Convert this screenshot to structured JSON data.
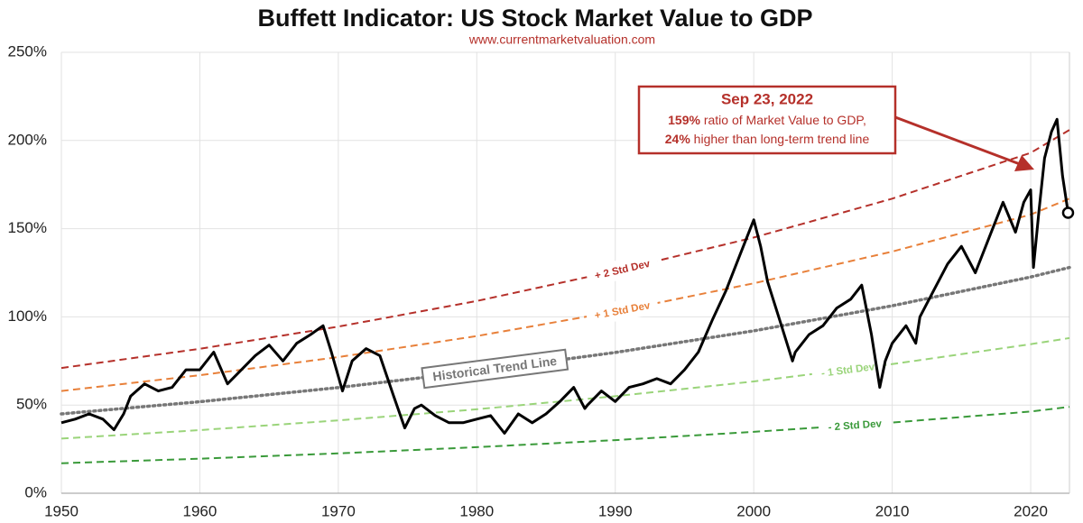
{
  "chart_data": {
    "type": "line",
    "title": "Buffett Indicator: US Stock Market Value to GDP",
    "subtitle": "www.currentmarketvaluation.com",
    "xlim": [
      1950,
      2022.8
    ],
    "xticks": [
      1950,
      1960,
      1970,
      1980,
      1990,
      2000,
      2010,
      2020
    ],
    "ylim": [
      0,
      250
    ],
    "yticks": [
      {
        "value": 0,
        "label": "0%"
      },
      {
        "value": 50,
        "label": "50%"
      },
      {
        "value": 100,
        "label": "100%"
      },
      {
        "value": 150,
        "label": "150%"
      },
      {
        "value": 200,
        "label": "200%"
      },
      {
        "value": 250,
        "label": "250%"
      }
    ],
    "grid": true,
    "series": [
      {
        "name": "+ 2 Std Dev",
        "color": "#b5302a",
        "style": "dashed",
        "x": [
          1950,
          1960,
          1970,
          1980,
          1990,
          2000,
          2010,
          2020,
          2022.8
        ],
        "values": [
          71,
          81.9,
          94.5,
          109,
          126,
          145,
          167,
          193,
          206
        ]
      },
      {
        "name": "+ 1 Std Dev",
        "color": "#e8803a",
        "style": "dashed",
        "x": [
          1950,
          1960,
          1970,
          1980,
          1990,
          2000,
          2010,
          2020,
          2022.8
        ],
        "values": [
          58,
          66.9,
          77.2,
          89.1,
          103,
          119,
          137,
          158,
          167
        ]
      },
      {
        "name": "Historical Trend Line",
        "color": "#777777",
        "style": "dotted",
        "x": [
          1950,
          1960,
          1970,
          1980,
          1990,
          2000,
          2010,
          2020,
          2022.8
        ],
        "values": [
          45,
          51.9,
          59.9,
          69.2,
          79.8,
          92.1,
          106.3,
          122.6,
          128
        ]
      },
      {
        "name": "- 1 Std Dev",
        "color": "#9ad47a",
        "style": "dashed",
        "x": [
          1950,
          1960,
          1970,
          1980,
          1990,
          2000,
          2010,
          2020,
          2022.8
        ],
        "values": [
          31,
          35.8,
          41.3,
          47.6,
          55,
          63.4,
          73.2,
          84.5,
          88
        ]
      },
      {
        "name": "- 2 Std Dev",
        "color": "#3a9a3a",
        "style": "dashed",
        "x": [
          1950,
          1960,
          1970,
          1980,
          1990,
          2000,
          2010,
          2020,
          2022.8
        ],
        "values": [
          17,
          19.6,
          22.6,
          26.1,
          30.1,
          34.8,
          40.1,
          46.3,
          49
        ]
      },
      {
        "color": "#000000",
        "style": "solid",
        "x": [
          1950,
          1951,
          1952,
          1953,
          1953.8,
          1954.5,
          1955,
          1956,
          1957,
          1958,
          1959,
          1960,
          1961,
          1962,
          1963,
          1964,
          1965,
          1966,
          1967,
          1968,
          1968.9,
          1969.5,
          1970.3,
          1971,
          1972,
          1973,
          1974,
          1974.8,
          1975.5,
          1976,
          1977,
          1978,
          1979,
          1980,
          1981,
          1982,
          1983,
          1984,
          1985,
          1986,
          1987,
          1987.8,
          1988,
          1989,
          1990,
          1991,
          1992,
          1993,
          1994,
          1995,
          1996,
          1997,
          1998,
          1999,
          2000,
          2000.5,
          2001,
          2002,
          2002.8,
          2003,
          2004,
          2005,
          2006,
          2007,
          2007.8,
          2008.5,
          2009.1,
          2009.5,
          2010,
          2011,
          2011.7,
          2012,
          2013,
          2014,
          2015,
          2016,
          2017,
          2018,
          2018.9,
          2019.5,
          2020,
          2020.2,
          2020.6,
          2021,
          2021.5,
          2021.9,
          2022.3,
          2022.7
        ],
        "values": [
          40,
          42,
          45,
          42,
          36,
          45,
          55,
          62,
          58,
          60,
          70,
          70,
          80,
          62,
          70,
          78,
          84,
          75,
          85,
          90,
          95,
          80,
          58,
          75,
          82,
          78,
          55,
          37,
          48,
          50,
          44,
          40,
          40,
          42,
          44,
          34,
          45,
          40,
          45,
          52,
          60,
          48,
          50,
          58,
          52,
          60,
          62,
          65,
          62,
          70,
          80,
          98,
          115,
          135,
          155,
          140,
          120,
          95,
          75,
          80,
          90,
          95,
          105,
          110,
          118,
          90,
          60,
          75,
          85,
          95,
          85,
          100,
          115,
          130,
          140,
          125,
          145,
          165,
          148,
          165,
          172,
          128,
          160,
          190,
          205,
          212,
          180,
          159
        ]
      }
    ],
    "annotation": {
      "title": "Sep 23, 2022",
      "line1_bold": "159%",
      "line1": " ratio of Market Value to GDP,",
      "line2_bold": "24%",
      "line2": " higher than long-term trend line"
    }
  }
}
